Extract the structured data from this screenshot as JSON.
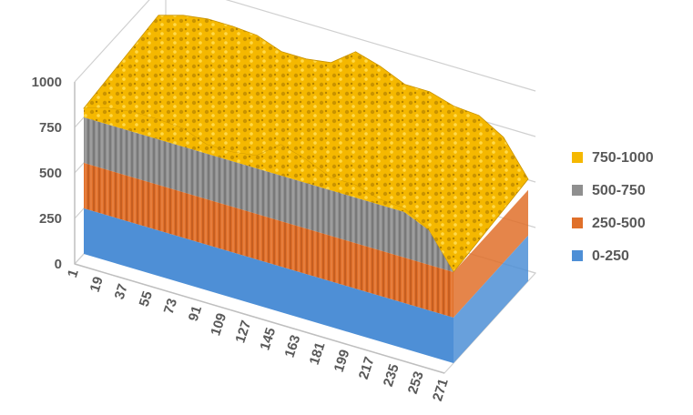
{
  "chart_data": {
    "type": "area",
    "subtype": "3d-surface",
    "title": "",
    "xlabel": "",
    "ylabel": "",
    "zlim": [
      0,
      1000
    ],
    "z_ticks": [
      "0",
      "250",
      "500",
      "750",
      "1000"
    ],
    "x_ticks": [
      "1",
      "19",
      "37",
      "55",
      "73",
      "91",
      "109",
      "127",
      "145",
      "163",
      "181",
      "199",
      "217",
      "235",
      "253",
      "271"
    ],
    "x_range": [
      1,
      271
    ],
    "grid": true,
    "legend_position": "right",
    "bands": [
      {
        "name": "750-1000",
        "range": [
          750,
          1000
        ],
        "color": "#F5B800"
      },
      {
        "name": "500-750",
        "range": [
          500,
          750
        ],
        "color": "#8F8F8F"
      },
      {
        "name": "250-500",
        "range": [
          250,
          500
        ],
        "color": "#E0702A"
      },
      {
        "name": "0-250",
        "range": [
          0,
          250
        ],
        "color": "#4E8FD6"
      }
    ],
    "front_profile": {
      "x": [
        1,
        19,
        37,
        55,
        73,
        91,
        109,
        127,
        145,
        163,
        181,
        199,
        217,
        235,
        253,
        271
      ],
      "values": [
        800,
        840,
        860,
        860,
        850,
        800,
        800,
        820,
        920,
        880,
        820,
        820,
        780,
        770,
        690,
        500
      ]
    }
  }
}
